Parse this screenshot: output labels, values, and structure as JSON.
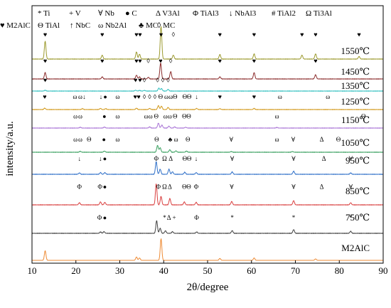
{
  "chart_data": {
    "type": "line",
    "xlabel": "2θ/degree",
    "ylabel": "intensity/a.u.",
    "xlim": [
      10,
      90
    ],
    "xticks": [
      "10",
      "20",
      "30",
      "40",
      "50",
      "60",
      "70",
      "80",
      "90"
    ],
    "legend": [
      {
        "symbol": "*",
        "name": "Ti"
      },
      {
        "symbol": "+",
        "name": "V"
      },
      {
        "symbol": "∀",
        "name": "Nb"
      },
      {
        "symbol": "●",
        "name": "C"
      },
      {
        "symbol": "Δ",
        "name": "V3Al"
      },
      {
        "symbol": "Φ",
        "name": "TiAl3"
      },
      {
        "symbol": "↓",
        "name": "NbAl3"
      },
      {
        "symbol": "#",
        "name": "TiAl2"
      },
      {
        "symbol": "Ω",
        "name": "Ti3Al"
      },
      {
        "symbol": "Θ",
        "name": "TiAl"
      },
      {
        "symbol": "↑",
        "name": "NbC"
      },
      {
        "symbol": "ω",
        "name": "Nb2Al"
      },
      {
        "symbol": "♣",
        "name": "MC"
      },
      {
        "symbol": "◊",
        "name": "MC"
      },
      {
        "symbol": "♥",
        "name": "M2AlC"
      }
    ],
    "series": [
      {
        "name": "1550℃",
        "color": "#9c9a2e",
        "peaks": [
          [
            13.0,
            0.55
          ],
          [
            26.0,
            0.12
          ],
          [
            33.8,
            0.22
          ],
          [
            34.5,
            0.15
          ],
          [
            39.4,
            1.0
          ],
          [
            42.2,
            0.12
          ],
          [
            52.8,
            0.14
          ],
          [
            60.6,
            0.16
          ],
          [
            71.5,
            0.12
          ],
          [
            74.6,
            0.16
          ],
          [
            84.5,
            0.08
          ]
        ],
        "markers": [
          {
            "x": 13.0,
            "sym": "♥"
          },
          {
            "x": 26.0,
            "sym": "♥"
          },
          {
            "x": 33.8,
            "sym": "♥"
          },
          {
            "x": 34.6,
            "sym": "♥"
          },
          {
            "x": 39.4,
            "sym": "♥"
          },
          {
            "x": 42.2,
            "sym": "◊"
          },
          {
            "x": 52.8,
            "sym": "♥"
          },
          {
            "x": 60.6,
            "sym": "♥"
          },
          {
            "x": 71.5,
            "sym": "♥"
          },
          {
            "x": 74.6,
            "sym": "♥"
          },
          {
            "x": 84.5,
            "sym": "♥"
          }
        ]
      },
      {
        "name": "1450℃",
        "color": "#8b2c2c",
        "peaks": [
          [
            13.0,
            0.3
          ],
          [
            26.0,
            0.1
          ],
          [
            33.8,
            0.18
          ],
          [
            34.5,
            0.1
          ],
          [
            36.5,
            0.08
          ],
          [
            39.3,
            0.75
          ],
          [
            41.6,
            0.35
          ],
          [
            52.8,
            0.1
          ],
          [
            60.6,
            0.3
          ],
          [
            74.6,
            0.2
          ]
        ],
        "markers": [
          {
            "x": 13.0,
            "sym": "♥"
          },
          {
            "x": 26.0,
            "sym": "♥"
          },
          {
            "x": 33.8,
            "sym": "♥"
          },
          {
            "x": 34.6,
            "sym": "♥"
          },
          {
            "x": 36.5,
            "sym": "◊"
          },
          {
            "x": 39.3,
            "sym": "♥"
          },
          {
            "x": 41.6,
            "sym": "◊"
          },
          {
            "x": 52.8,
            "sym": "♥"
          },
          {
            "x": 60.6,
            "sym": "♥"
          },
          {
            "x": 74.6,
            "sym": "♥"
          }
        ]
      },
      {
        "name": "1350℃",
        "color": "#2fbfbf",
        "peaks": [
          [
            13.0,
            0.1
          ],
          [
            33.6,
            0.1
          ],
          [
            34.5,
            0.08
          ],
          [
            35.6,
            0.08
          ],
          [
            38.9,
            0.35
          ],
          [
            39.5,
            0.3
          ],
          [
            41.0,
            0.2
          ]
        ],
        "markers": [
          {
            "x": 13.0,
            "sym": "♥"
          },
          {
            "x": 33.6,
            "sym": "♥"
          },
          {
            "x": 34.6,
            "sym": "♥"
          },
          {
            "x": 35.6,
            "sym": "◊"
          },
          {
            "x": 38.6,
            "sym": "◊"
          },
          {
            "x": 39.8,
            "sym": "◊"
          },
          {
            "x": 41.0,
            "sym": "◊"
          }
        ]
      },
      {
        "name": "1250℃",
        "color": "#d39a1e",
        "peaks": [
          [
            12.9,
            0.12
          ],
          [
            21.5,
            0.08
          ],
          [
            25.6,
            0.1
          ],
          [
            26.8,
            0.08
          ],
          [
            33.8,
            0.12
          ],
          [
            36.8,
            0.1
          ],
          [
            38.8,
            0.35
          ],
          [
            39.5,
            0.3
          ],
          [
            41.0,
            0.18
          ],
          [
            47.5,
            0.1
          ],
          [
            52.8,
            0.08
          ],
          [
            60.6,
            0.1
          ]
        ],
        "markers": [
          {
            "x": 12.9,
            "sym": "♥"
          },
          {
            "x": 19.8,
            "sym": "ω"
          },
          {
            "x": 21.0,
            "sym": "ω"
          },
          {
            "x": 21.9,
            "sym": "↓"
          },
          {
            "x": 25.7,
            "sym": "↓"
          },
          {
            "x": 26.7,
            "sym": "●"
          },
          {
            "x": 29.5,
            "sym": "ω"
          },
          {
            "x": 33.5,
            "sym": "♥"
          },
          {
            "x": 34.3,
            "sym": "♥"
          },
          {
            "x": 35.6,
            "sym": "◊"
          },
          {
            "x": 36.8,
            "sym": "◊"
          },
          {
            "x": 38.0,
            "sym": "◊"
          },
          {
            "x": 39.3,
            "sym": "Θ"
          },
          {
            "x": 40.6,
            "sym": "ω"
          },
          {
            "x": 41.6,
            "sym": "ω"
          },
          {
            "x": 42.6,
            "sym": "Θ"
          },
          {
            "x": 44.8,
            "sym": "Θ"
          },
          {
            "x": 45.8,
            "sym": "Θ"
          },
          {
            "x": 47.5,
            "sym": "↓"
          },
          {
            "x": 52.8,
            "sym": "♥"
          },
          {
            "x": 60.6,
            "sym": "♥"
          },
          {
            "x": 66.5,
            "sym": "ω"
          },
          {
            "x": 77.4,
            "sym": "ω"
          }
        ]
      },
      {
        "name": "1150℃",
        "color": "#a974d6",
        "peaks": [
          [
            21.0,
            0.08
          ],
          [
            26.5,
            0.1
          ],
          [
            36.8,
            0.12
          ],
          [
            38.8,
            0.5
          ],
          [
            39.6,
            0.3
          ],
          [
            41.2,
            0.2
          ],
          [
            42.5,
            0.12
          ],
          [
            45.0,
            0.08
          ],
          [
            65.8,
            0.06
          ]
        ],
        "markers": [
          {
            "x": 19.9,
            "sym": "ω"
          },
          {
            "x": 21.0,
            "sym": "ω"
          },
          {
            "x": 26.5,
            "sym": "●"
          },
          {
            "x": 29.5,
            "sym": "ω"
          },
          {
            "x": 36.0,
            "sym": "ω"
          },
          {
            "x": 37.0,
            "sym": "ω"
          },
          {
            "x": 38.3,
            "sym": "Θ"
          },
          {
            "x": 40.4,
            "sym": "ω"
          },
          {
            "x": 41.4,
            "sym": "ω"
          },
          {
            "x": 42.6,
            "sym": "Θ"
          },
          {
            "x": 44.7,
            "sym": "Θ"
          },
          {
            "x": 45.7,
            "sym": "Θ"
          },
          {
            "x": 65.8,
            "sym": "ω"
          },
          {
            "x": 85.5,
            "sym": "Θ"
          }
        ]
      },
      {
        "name": "1050℃",
        "color": "#3aa060",
        "peaks": [
          [
            21.0,
            0.08
          ],
          [
            26.5,
            0.1
          ],
          [
            38.6,
            0.6
          ],
          [
            39.2,
            0.4
          ],
          [
            41.4,
            0.22
          ],
          [
            42.8,
            0.12
          ],
          [
            45.2,
            0.1
          ],
          [
            55.4,
            0.06
          ],
          [
            69.3,
            0.06
          ]
        ],
        "markers": [
          {
            "x": 19.9,
            "sym": "ω"
          },
          {
            "x": 21.0,
            "sym": "ω"
          },
          {
            "x": 23.0,
            "sym": "Θ"
          },
          {
            "x": 26.4,
            "sym": "●"
          },
          {
            "x": 29.5,
            "sym": "ω"
          },
          {
            "x": 38.4,
            "sym": "Θ"
          },
          {
            "x": 41.5,
            "sym": "♣"
          },
          {
            "x": 42.8,
            "sym": "ω"
          },
          {
            "x": 45.5,
            "sym": "Θ"
          },
          {
            "x": 55.4,
            "sym": "∀"
          },
          {
            "x": 65.8,
            "sym": "ω"
          },
          {
            "x": 69.5,
            "sym": "∀"
          },
          {
            "x": 76.0,
            "sym": "Δ"
          },
          {
            "x": 79.8,
            "sym": "Θ"
          }
        ]
      },
      {
        "name": "950℃",
        "color": "#2e6fc8",
        "peaks": [
          [
            20.8,
            0.08
          ],
          [
            25.6,
            0.1
          ],
          [
            26.6,
            0.1
          ],
          [
            38.3,
            0.75
          ],
          [
            39.2,
            0.3
          ],
          [
            41.2,
            0.3
          ],
          [
            42.0,
            0.15
          ],
          [
            44.8,
            0.12
          ],
          [
            47.4,
            0.1
          ],
          [
            55.6,
            0.14
          ],
          [
            69.6,
            0.18
          ],
          [
            82.6,
            0.08
          ]
        ],
        "markers": [
          {
            "x": 20.8,
            "sym": "↓"
          },
          {
            "x": 25.6,
            "sym": "↓"
          },
          {
            "x": 26.6,
            "sym": "●"
          },
          {
            "x": 38.3,
            "sym": "Φ"
          },
          {
            "x": 40.2,
            "sym": "Ω"
          },
          {
            "x": 41.6,
            "sym": "Δ"
          },
          {
            "x": 44.8,
            "sym": "Θ"
          },
          {
            "x": 45.8,
            "sym": "Θ"
          },
          {
            "x": 47.4,
            "sym": "↓"
          },
          {
            "x": 55.6,
            "sym": "∀"
          },
          {
            "x": 69.6,
            "sym": "∀"
          },
          {
            "x": 76.5,
            "sym": "Δ"
          },
          {
            "x": 82.6,
            "sym": "∀"
          }
        ]
      },
      {
        "name": "850℃",
        "color": "#d94040",
        "peaks": [
          [
            20.8,
            0.1
          ],
          [
            25.6,
            0.14
          ],
          [
            26.6,
            0.12
          ],
          [
            38.3,
            1.0
          ],
          [
            39.4,
            0.4
          ],
          [
            41.4,
            0.3
          ],
          [
            44.7,
            0.14
          ],
          [
            47.4,
            0.12
          ],
          [
            55.5,
            0.16
          ],
          [
            69.6,
            0.2
          ],
          [
            82.6,
            0.1
          ]
        ],
        "markers": [
          {
            "x": 20.8,
            "sym": "Φ"
          },
          {
            "x": 25.5,
            "sym": "Φ"
          },
          {
            "x": 26.6,
            "sym": "●"
          },
          {
            "x": 38.8,
            "sym": "Φ"
          },
          {
            "x": 40.2,
            "sym": "Ω"
          },
          {
            "x": 41.4,
            "sym": "Δ"
          },
          {
            "x": 44.7,
            "sym": "Θ"
          },
          {
            "x": 45.7,
            "sym": "Θ"
          },
          {
            "x": 47.4,
            "sym": "Φ"
          },
          {
            "x": 55.5,
            "sym": "∀"
          },
          {
            "x": 69.6,
            "sym": "∀"
          },
          {
            "x": 76.0,
            "sym": "Δ"
          },
          {
            "x": 82.6,
            "sym": "∀"
          }
        ]
      },
      {
        "name": "750℃",
        "color": "#404040",
        "peaks": [
          [
            25.6,
            0.08
          ],
          [
            26.4,
            0.1
          ],
          [
            38.4,
            0.75
          ],
          [
            39.2,
            0.3
          ],
          [
            40.4,
            0.15
          ],
          [
            42.0,
            0.1
          ],
          [
            47.5,
            0.08
          ],
          [
            55.6,
            0.16
          ],
          [
            69.6,
            0.22
          ],
          [
            82.6,
            0.12
          ]
        ],
        "markers": [
          {
            "x": 25.4,
            "sym": "Φ"
          },
          {
            "x": 26.6,
            "sym": "●"
          },
          {
            "x": 40.2,
            "sym": "*"
          },
          {
            "x": 41.2,
            "sym": "Δ"
          },
          {
            "x": 42.4,
            "sym": "+"
          },
          {
            "x": 47.5,
            "sym": "Φ"
          },
          {
            "x": 55.6,
            "sym": "*"
          },
          {
            "x": 69.6,
            "sym": "*"
          },
          {
            "x": 82.6,
            "sym": "*"
          }
        ]
      },
      {
        "name": "M2AlC",
        "color": "#ee8a33",
        "peaks": [
          [
            13.0,
            0.4
          ],
          [
            33.8,
            0.14
          ],
          [
            34.5,
            0.1
          ],
          [
            39.4,
            0.9
          ],
          [
            52.8,
            0.08
          ],
          [
            60.6,
            0.1
          ],
          [
            74.6,
            0.06
          ]
        ],
        "markers": []
      }
    ]
  }
}
